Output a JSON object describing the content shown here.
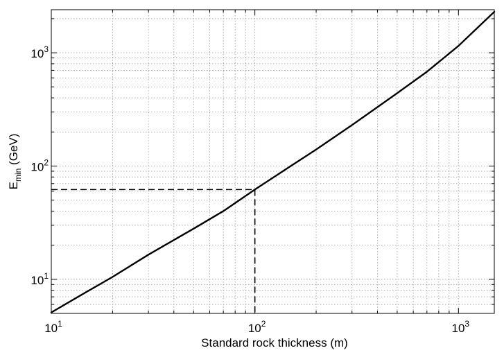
{
  "chart_data": {
    "type": "line",
    "x_scale": "log",
    "y_scale": "log",
    "xlabel": "Standard rock thickness (m)",
    "ylabel_main": "E",
    "ylabel_sub": "min",
    "ylabel_unit": " (GeV)",
    "xlim": [
      10,
      1500
    ],
    "ylim": [
      5,
      2400
    ],
    "grid": true,
    "x_ticks": [
      {
        "value": 10,
        "base": "10",
        "exp": "1"
      },
      {
        "value": 100,
        "base": "10",
        "exp": "2"
      },
      {
        "value": 1000,
        "base": "10",
        "exp": "3"
      }
    ],
    "y_ticks": [
      {
        "value": 10,
        "base": "10",
        "exp": "1"
      },
      {
        "value": 100,
        "base": "10",
        "exp": "2"
      },
      {
        "value": 1000,
        "base": "10",
        "exp": "3"
      }
    ],
    "series": [
      {
        "style": "solid",
        "color": "#000000",
        "x": [
          10,
          15,
          20,
          30,
          50,
          70,
          100,
          150,
          200,
          300,
          500,
          700,
          1000,
          1500
        ],
        "y": [
          5.1,
          7.8,
          10.5,
          16.5,
          28,
          40,
          62,
          100,
          140,
          230,
          440,
          680,
          1150,
          2300
        ]
      }
    ],
    "annotations": [
      {
        "type": "dashed-guide",
        "color": "#000000",
        "x": 100,
        "y": 62
      }
    ]
  }
}
